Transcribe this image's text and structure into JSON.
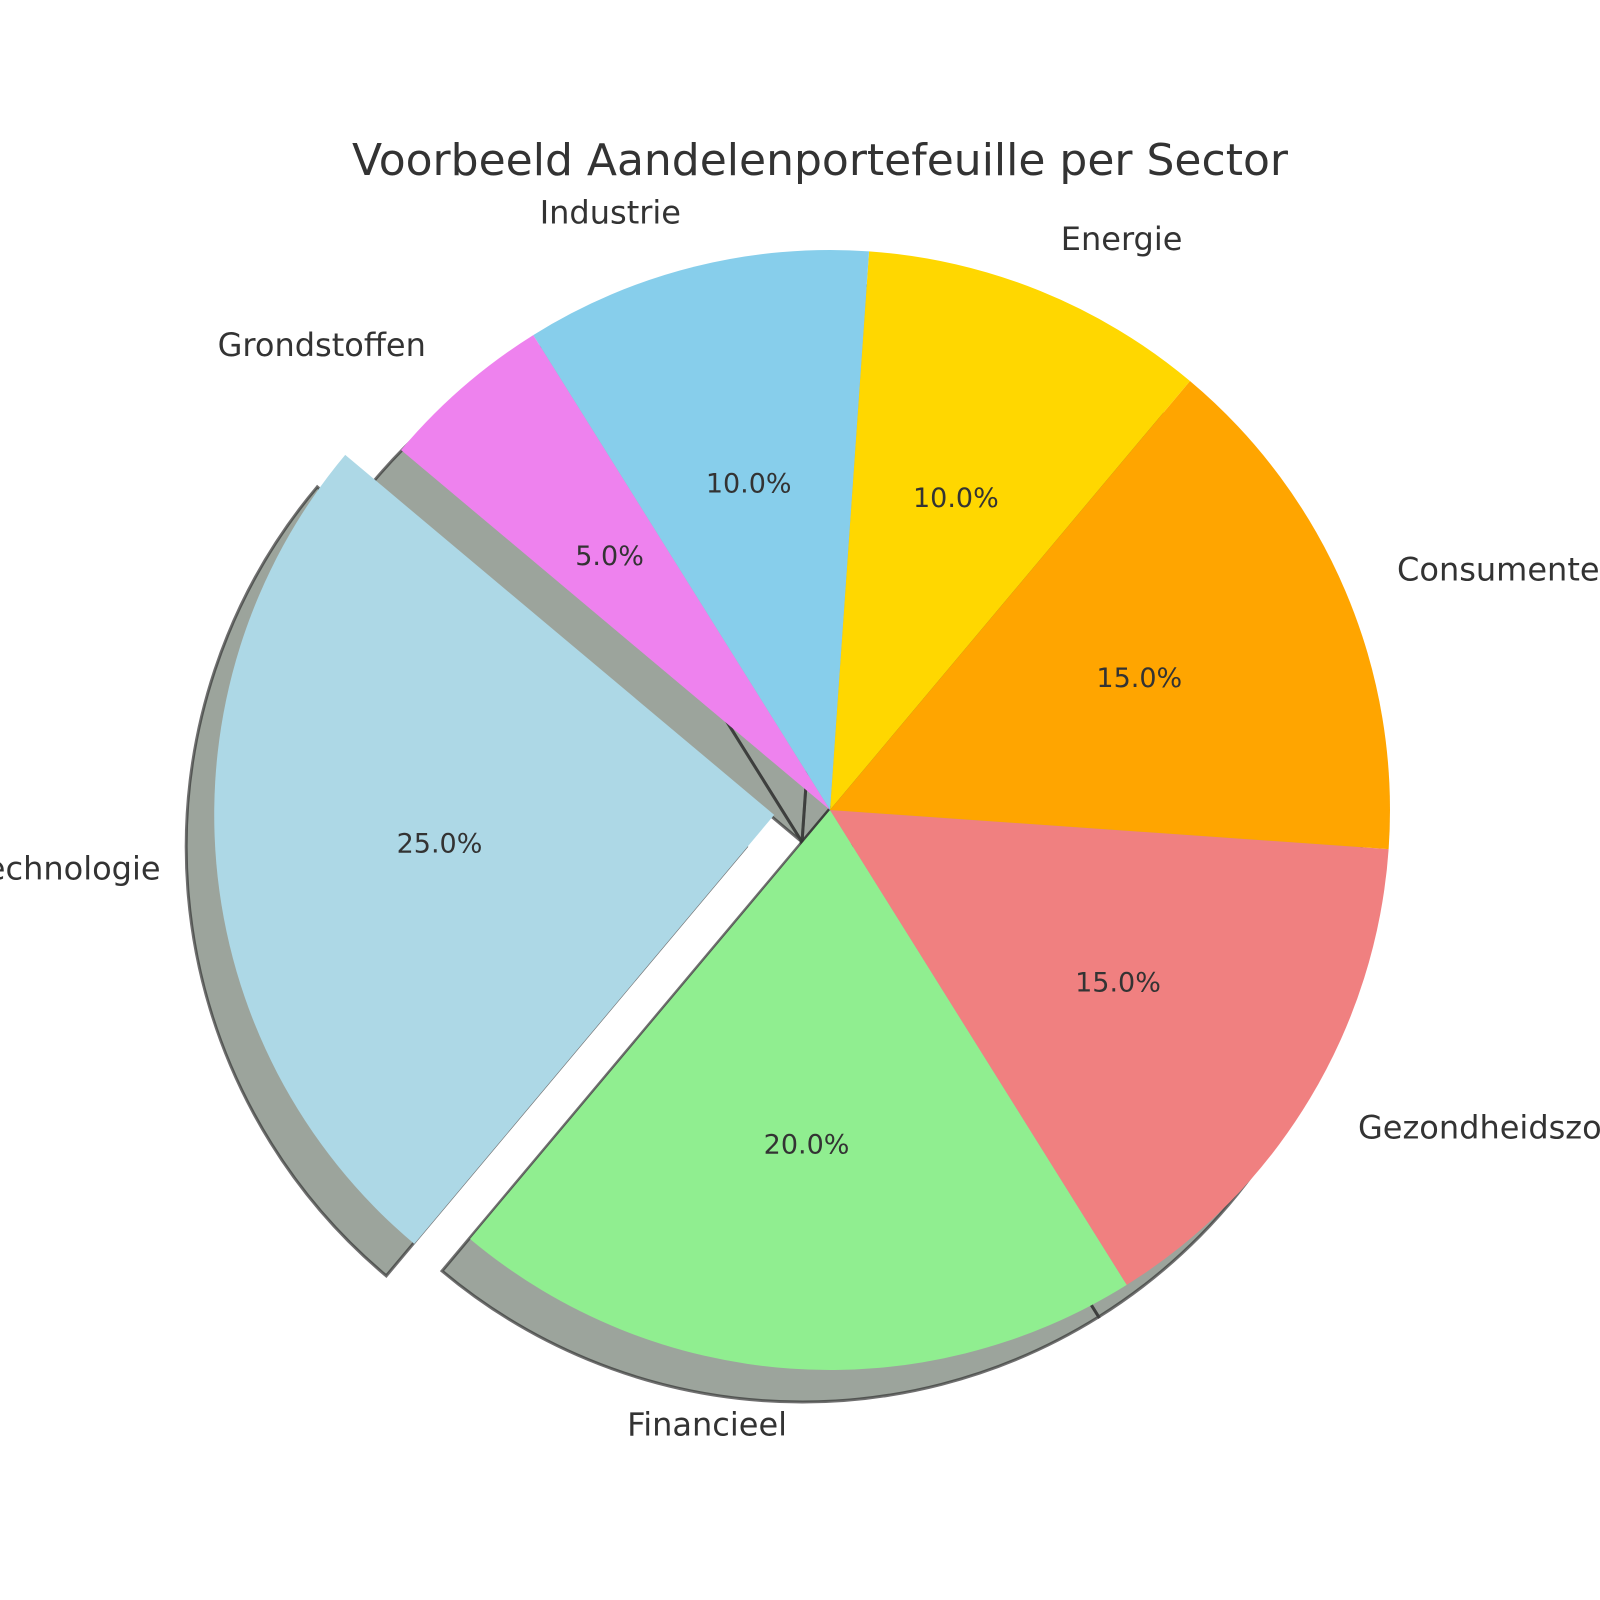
{
  "chart_data": {
    "type": "pie",
    "title": "Voorbeeld Aandelenportefeuille per Sector",
    "categories": [
      "Technologie",
      "Financieel",
      "Gezondheidszorg",
      "Consumentengoederen",
      "Energie",
      "Industrie",
      "Grondstoffen"
    ],
    "values": [
      25,
      20,
      15,
      15,
      10,
      10,
      5
    ],
    "percent_labels": [
      "25.0%",
      "20.0%",
      "15.0%",
      "15.0%",
      "10.0%",
      "10.0%",
      "5.0%"
    ],
    "colors": [
      "#add8e6",
      "#90ee90",
      "#f08080",
      "#ffa500",
      "#ffd700",
      "#87ceeb",
      "#ee82ee"
    ],
    "explode": [
      0.1,
      0,
      0,
      0,
      0,
      0,
      0
    ],
    "start_angle_deg": 140,
    "direction": "counterclockwise",
    "shadow": true,
    "legend": "none"
  }
}
